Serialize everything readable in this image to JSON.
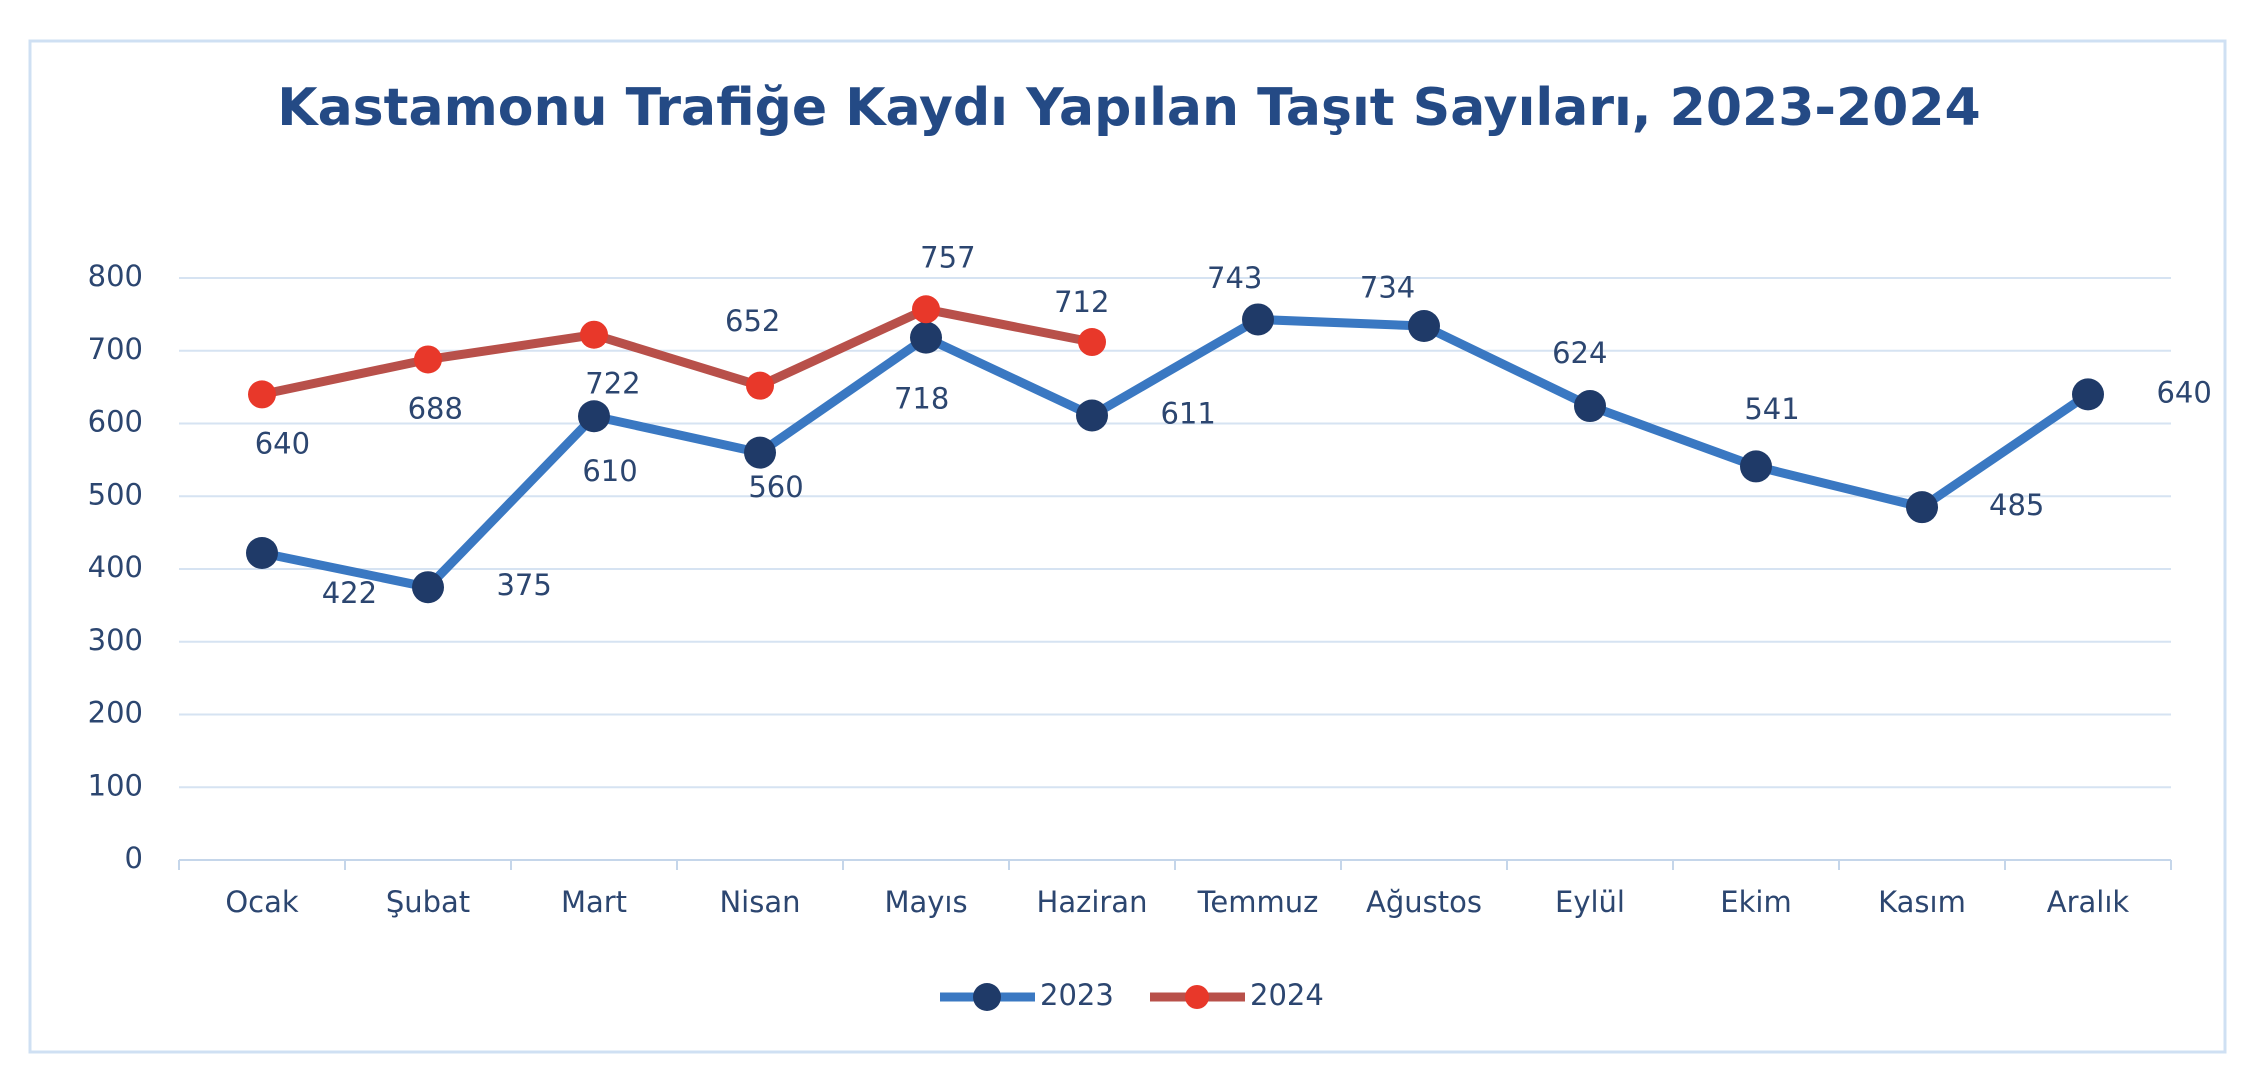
{
  "chart_data": {
    "type": "line",
    "title": "Kastamonu Trafiğe Kaydı Yapılan Taşıt Sayıları, 2023-2024",
    "categories": [
      "Ocak",
      "Şubat",
      "Mart",
      "Nisan",
      "Mayıs",
      "Haziran",
      "Temmuz",
      "Ağustos",
      "Eylül",
      "Ekim",
      "Kasım",
      "Aralık"
    ],
    "series": [
      {
        "name": "2023",
        "color": "#3a78c2",
        "marker_color": "#1f3a68",
        "values": [
          422,
          375,
          610,
          560,
          718,
          611,
          743,
          734,
          624,
          541,
          485,
          640
        ]
      },
      {
        "name": "2024",
        "color": "#b8504a",
        "marker_color": "#e8382a",
        "values": [
          640,
          688,
          722,
          652,
          757,
          712,
          null,
          null,
          null,
          null,
          null,
          null
        ]
      }
    ],
    "ylim": [
      0,
      800
    ],
    "yticks": [
      0,
      100,
      200,
      300,
      400,
      500,
      600,
      700,
      800
    ],
    "grid": true,
    "legend": "bottom"
  }
}
